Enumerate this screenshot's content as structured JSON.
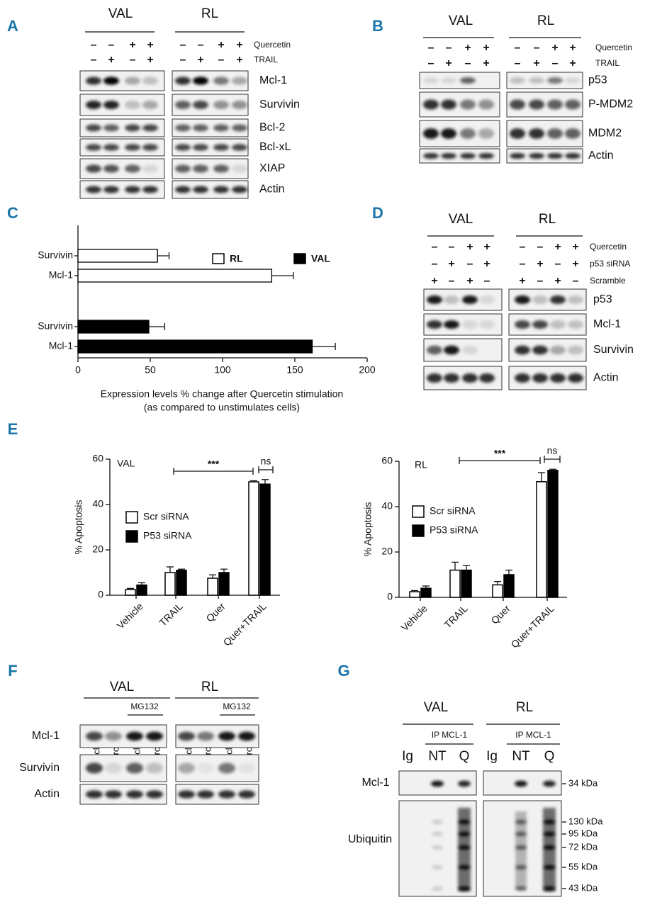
{
  "panels": {
    "A": {
      "label": "A",
      "cell_lines": [
        "VAL",
        "RL"
      ],
      "treatments": [
        {
          "name": "Quercetin",
          "signs": [
            "–",
            "–",
            "+",
            "+"
          ]
        },
        {
          "name": "TRAIL",
          "signs": [
            "–",
            "+",
            "–",
            "+"
          ]
        }
      ],
      "proteins": [
        "Mcl-1",
        "Survivin",
        "Bcl-2",
        "Bcl-xL",
        "XIAP",
        "Actin"
      ]
    },
    "B": {
      "label": "B",
      "cell_lines": [
        "VAL",
        "RL"
      ],
      "treatments": [
        {
          "name": "Quercetin",
          "signs": [
            "–",
            "–",
            "+",
            "+"
          ]
        },
        {
          "name": "TRAIL",
          "signs": [
            "–",
            "+",
            "–",
            "+"
          ]
        }
      ],
      "proteins": [
        "p53",
        "P-MDM2",
        "MDM2",
        "Actin"
      ]
    },
    "D": {
      "label": "D",
      "cell_lines": [
        "VAL",
        "RL"
      ],
      "treatments": [
        {
          "name": "Quercetin",
          "signs": [
            "–",
            "–",
            "+",
            "+"
          ]
        },
        {
          "name": "p53 siRNA",
          "signs": [
            "–",
            "+",
            "–",
            "+"
          ]
        },
        {
          "name": "Scramble",
          "signs": [
            "+",
            "–",
            "+",
            "–"
          ]
        }
      ],
      "proteins": [
        "p53",
        "Mcl-1",
        "Survivin",
        "Actin"
      ]
    },
    "F": {
      "label": "F",
      "cell_lines": [
        "VAL",
        "RL"
      ],
      "treatment": "MG132",
      "lanes": [
        "Vehicle",
        "Quercetin",
        "Vehicle",
        "Quercetin"
      ],
      "proteins": [
        "Mcl-1",
        "Survivin",
        "Actin"
      ]
    },
    "G": {
      "label": "G",
      "cell_lines": [
        "VAL",
        "RL"
      ],
      "ip": "IP MCL-1",
      "lanes": [
        "Ig",
        "NT",
        "Q"
      ],
      "proteins": [
        "Mcl-1",
        "Ubiquitin"
      ],
      "markers": [
        "34 kDa",
        "130 kDa",
        "95 kDa",
        "72 kDa",
        "55 kDa",
        "43 kDa"
      ]
    }
  },
  "chart_data": [
    {
      "type": "bar",
      "panel": "C",
      "orientation": "horizontal",
      "xlabel": [
        "Expression levels % change after Quercetin stimulation",
        "(as compared to unstimulates cells)"
      ],
      "categories": [
        "Survivin",
        "Mcl-1"
      ],
      "series": [
        {
          "name": "RL",
          "color": "#ffffff",
          "values": [
            55,
            134
          ],
          "errors": [
            8,
            15
          ]
        },
        {
          "name": "VAL",
          "color": "#000000",
          "values": [
            49,
            162
          ],
          "errors": [
            11,
            16
          ]
        }
      ],
      "xlim": [
        0,
        200
      ],
      "xticks": [
        0,
        50,
        100,
        150,
        200
      ]
    },
    {
      "type": "bar",
      "panel": "E",
      "title": "VAL",
      "ylabel": "% Apoptosis",
      "categories": [
        "Vehicle",
        "TRAIL",
        "Quer",
        "Quer+TRAIL"
      ],
      "series": [
        {
          "name": "Scr siRNA",
          "color": "#ffffff",
          "values": [
            2.5,
            10,
            7.5,
            50
          ],
          "errors": [
            0.5,
            2.5,
            1.5,
            0.5
          ]
        },
        {
          "name": "P53 siRNA",
          "color": "#000000",
          "values": [
            4.5,
            11,
            10,
            49
          ],
          "errors": [
            1,
            0.5,
            1.5,
            2
          ]
        }
      ],
      "ylim": [
        0,
        60
      ],
      "yticks": [
        0,
        20,
        40,
        60
      ],
      "annotations": [
        "***",
        "ns"
      ]
    },
    {
      "type": "bar",
      "title": "RL",
      "ylabel": "% Apoptosis",
      "categories": [
        "Vehicle",
        "TRAIL",
        "Quer",
        "Quer+TRAIL"
      ],
      "series": [
        {
          "name": "Scr siRNA",
          "color": "#ffffff",
          "values": [
            2.5,
            12,
            5.5,
            51
          ],
          "errors": [
            0.5,
            3.5,
            1.5,
            4
          ]
        },
        {
          "name": "P53 siRNA",
          "color": "#000000",
          "values": [
            4,
            12,
            10,
            56
          ],
          "errors": [
            1,
            2,
            2,
            0.5
          ]
        }
      ],
      "ylim": [
        0,
        60
      ],
      "yticks": [
        0,
        20,
        40,
        60
      ],
      "annotations": [
        "***",
        "ns"
      ]
    }
  ]
}
